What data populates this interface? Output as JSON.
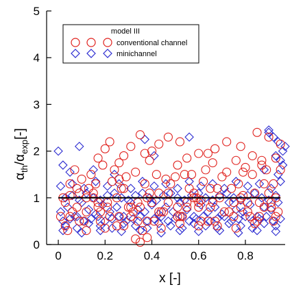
{
  "chart_data": {
    "type": "scatter",
    "xlabel": "x [-]",
    "ylabel_main": "α",
    "ylabel_sub1": "th",
    "ylabel_mid": "/α",
    "ylabel_sub2": "exp",
    "ylabel_tail": "[-]",
    "xlim": [
      -0.05,
      0.97
    ],
    "ylim": [
      0,
      5
    ],
    "x_ticks": [
      0,
      0.2,
      0.4,
      0.6,
      0.8
    ],
    "x_tick_labels": [
      "0",
      "0.2",
      "0.4",
      "0.6",
      "0.8"
    ],
    "y_ticks": [
      0,
      1,
      2,
      3,
      4,
      5
    ],
    "y_tick_labels": [
      "0",
      "1",
      "2",
      "3",
      "4",
      "5"
    ],
    "grid": false,
    "reference_line": {
      "x": [
        0,
        0.95
      ],
      "y": [
        1,
        1
      ],
      "color": "#000000"
    },
    "legend": {
      "title": "model III",
      "placement": "top-left",
      "entries": [
        "conventional channel",
        "minichannel"
      ]
    },
    "series": [
      {
        "name": "conventional channel",
        "marker": "circle",
        "color": "#e0201c",
        "sampled": true,
        "x": [
          0.01,
          0.03,
          0.05,
          0.08,
          0.11,
          0.15,
          0.18,
          0.21,
          0.25,
          0.28,
          0.31,
          0.35,
          0.38,
          0.41,
          0.45,
          0.48,
          0.51,
          0.55,
          0.58,
          0.61,
          0.65,
          0.68,
          0.71,
          0.75,
          0.78,
          0.81,
          0.85,
          0.88,
          0.91,
          0.94,
          0.02,
          0.06,
          0.09,
          0.13,
          0.17,
          0.22,
          0.26,
          0.3,
          0.34,
          0.39,
          0.43,
          0.47,
          0.52,
          0.56,
          0.6,
          0.64,
          0.69,
          0.73,
          0.77,
          0.82,
          0.86,
          0.9,
          0.93,
          0.04,
          0.12,
          0.2,
          0.28,
          0.36,
          0.44,
          0.52,
          0.6,
          0.68,
          0.76,
          0.84,
          0.92,
          0.07,
          0.14,
          0.19,
          0.24,
          0.33,
          0.42,
          0.5,
          0.57,
          0.63,
          0.72,
          0.8,
          0.87,
          0.95,
          0.1,
          0.16,
          0.23,
          0.29,
          0.37,
          0.46,
          0.54,
          0.62,
          0.7,
          0.79,
          0.83,
          0.89,
          0.03,
          0.09,
          0.15,
          0.21,
          0.27,
          0.32,
          0.4,
          0.47,
          0.55,
          0.59,
          0.66,
          0.74,
          0.81,
          0.88,
          0.93,
          0.05,
          0.12,
          0.18,
          0.26,
          0.31,
          0.38,
          0.44,
          0.53,
          0.6,
          0.67,
          0.73,
          0.78,
          0.86,
          0.91,
          0.08,
          0.17,
          0.25,
          0.34,
          0.43,
          0.51,
          0.58,
          0.65,
          0.75,
          0.84,
          0.92,
          0.2,
          0.22,
          0.31,
          0.35,
          0.4,
          0.43,
          0.47,
          0.52,
          0.6,
          0.67,
          0.72,
          0.78,
          0.85,
          0.9,
          0.95,
          0.17,
          0.28,
          0.37,
          0.55,
          0.64,
          0.76,
          0.83,
          0.93,
          0.26,
          0.39,
          0.51,
          0.66,
          0.87,
          0.33,
          0.35,
          0.38,
          0.05,
          0.12,
          0.61,
          0.79
        ],
        "y": [
          0.6,
          0.4,
          1.3,
          0.8,
          0.5,
          1.1,
          0.7,
          0.9,
          0.4,
          1.2,
          0.6,
          0.8,
          1.0,
          0.5,
          0.7,
          1.3,
          0.6,
          0.9,
          1.1,
          0.5,
          0.8,
          1.2,
          0.7,
          0.6,
          1.0,
          0.9,
          0.5,
          1.3,
          0.8,
          0.7,
          1.0,
          0.7,
          0.5,
          1.2,
          0.9,
          0.6,
          1.4,
          0.8,
          0.5,
          1.1,
          0.7,
          0.9,
          0.6,
          1.2,
          0.8,
          0.5,
          1.0,
          0.7,
          1.3,
          0.6,
          0.9,
          1.1,
          0.6,
          0.3,
          0.3,
          0.35,
          0.4,
          0.3,
          0.35,
          0.45,
          0.4,
          0.4,
          0.35,
          0.45,
          0.5,
          1.6,
          1.5,
          1.7,
          1.6,
          1.55,
          1.5,
          1.45,
          1.5,
          1.6,
          1.55,
          1.65,
          1.7,
          1.6,
          1.4,
          1.3,
          1.35,
          1.45,
          1.3,
          1.4,
          1.5,
          1.35,
          1.45,
          1.55,
          1.5,
          1.6,
          0.9,
          1.1,
          1.0,
          0.8,
          1.2,
          0.7,
          0.9,
          1.1,
          0.8,
          1.0,
          0.9,
          1.2,
          0.7,
          0.8,
          1.0,
          0.6,
          0.7,
          0.5,
          0.6,
          0.8,
          0.5,
          0.7,
          0.6,
          0.9,
          0.5,
          0.7,
          0.8,
          0.6,
          0.9,
          1.2,
          0.8,
          1.0,
          0.9,
          1.1,
          0.8,
          1.0,
          1.2,
          0.9,
          1.1,
          1.3,
          2.05,
          2.2,
          2.1,
          2.35,
          2.0,
          2.15,
          2.3,
          2.2,
          1.95,
          2.05,
          2.2,
          2.1,
          2.4,
          2.3,
          2.15,
          1.85,
          1.9,
          1.95,
          1.85,
          1.95,
          1.8,
          1.9,
          1.85,
          1.75,
          1.8,
          1.7,
          1.75,
          1.8,
          0.12,
          0.05,
          0.15,
          1.05,
          1.0,
          0.95,
          1.05
        ]
      },
      {
        "name": "minichannel",
        "marker": "diamond",
        "color": "#2a2ad0",
        "sampled": true,
        "x": [
          0.01,
          0.04,
          0.07,
          0.1,
          0.13,
          0.16,
          0.19,
          0.22,
          0.25,
          0.28,
          0.31,
          0.34,
          0.37,
          0.4,
          0.43,
          0.46,
          0.49,
          0.52,
          0.55,
          0.58,
          0.61,
          0.64,
          0.67,
          0.7,
          0.73,
          0.76,
          0.79,
          0.82,
          0.85,
          0.88,
          0.91,
          0.94,
          0.02,
          0.05,
          0.08,
          0.11,
          0.14,
          0.17,
          0.2,
          0.23,
          0.26,
          0.29,
          0.32,
          0.35,
          0.38,
          0.41,
          0.44,
          0.47,
          0.5,
          0.53,
          0.56,
          0.59,
          0.62,
          0.65,
          0.68,
          0.71,
          0.74,
          0.77,
          0.8,
          0.83,
          0.86,
          0.89,
          0.92,
          0.95,
          0.03,
          0.06,
          0.09,
          0.12,
          0.15,
          0.18,
          0.21,
          0.24,
          0.27,
          0.3,
          0.33,
          0.36,
          0.39,
          0.42,
          0.45,
          0.48,
          0.51,
          0.54,
          0.57,
          0.6,
          0.63,
          0.66,
          0.69,
          0.72,
          0.75,
          0.78,
          0.81,
          0.84,
          0.87,
          0.9,
          0.93,
          0.01,
          0.06,
          0.11,
          0.16,
          0.21,
          0.26,
          0.31,
          0.36,
          0.41,
          0.46,
          0.51,
          0.56,
          0.61,
          0.66,
          0.71,
          0.76,
          0.81,
          0.86,
          0.91,
          0.95,
          0.03,
          0.08,
          0.13,
          0.18,
          0.23,
          0.28,
          0.33,
          0.38,
          0.43,
          0.48,
          0.53,
          0.58,
          0.63,
          0.68,
          0.73,
          0.78,
          0.83,
          0.88,
          0.93,
          0.02,
          0.1,
          0.18,
          0.27,
          0.35,
          0.44,
          0.52,
          0.6,
          0.69,
          0.77,
          0.85,
          0.93,
          0.0,
          0.02,
          0.05,
          0.09,
          0.15,
          0.24,
          0.37,
          0.41,
          0.56,
          0.9,
          0.92,
          0.94,
          0.96,
          0.95,
          0.93,
          0.97,
          0.9,
          0.88,
          0.94,
          0.96
        ],
        "y": [
          0.7,
          0.8,
          0.6,
          0.9,
          0.75,
          0.65,
          0.85,
          0.7,
          0.8,
          0.6,
          0.9,
          0.75,
          0.7,
          0.85,
          0.65,
          0.8,
          0.7,
          0.9,
          0.75,
          0.6,
          0.85,
          0.7,
          0.8,
          0.65,
          0.9,
          0.75,
          0.7,
          0.85,
          0.6,
          0.8,
          0.75,
          0.9,
          0.5,
          0.55,
          0.6,
          0.5,
          0.55,
          0.6,
          0.5,
          0.55,
          0.6,
          0.5,
          0.55,
          0.6,
          0.5,
          0.55,
          0.6,
          0.5,
          0.55,
          0.6,
          0.5,
          0.55,
          0.6,
          0.5,
          0.55,
          0.6,
          0.5,
          0.55,
          0.6,
          0.5,
          0.55,
          0.6,
          0.5,
          0.55,
          1.0,
          1.05,
          0.95,
          1.1,
          1.0,
          0.95,
          1.05,
          1.1,
          1.0,
          0.95,
          1.05,
          1.1,
          1.0,
          0.95,
          1.05,
          1.1,
          1.0,
          0.95,
          1.05,
          1.1,
          1.0,
          0.95,
          1.05,
          1.1,
          1.0,
          0.95,
          1.05,
          1.1,
          1.0,
          0.95,
          1.05,
          1.25,
          1.3,
          1.2,
          1.35,
          1.25,
          1.3,
          1.2,
          1.35,
          1.25,
          1.3,
          1.2,
          1.35,
          1.25,
          1.3,
          1.2,
          1.35,
          1.25,
          1.3,
          1.2,
          1.35,
          0.4,
          0.35,
          0.45,
          0.4,
          0.35,
          0.45,
          0.4,
          0.35,
          0.45,
          0.4,
          0.35,
          0.45,
          0.4,
          0.35,
          0.45,
          0.4,
          0.35,
          0.45,
          0.4,
          0.3,
          0.25,
          0.3,
          0.28,
          0.3,
          0.25,
          0.3,
          0.28,
          0.3,
          0.25,
          0.3,
          0.28,
          2.0,
          1.7,
          1.55,
          2.1,
          1.6,
          1.5,
          2.25,
          1.9,
          2.3,
          2.45,
          2.3,
          2.2,
          2.0,
          1.8,
          1.9,
          2.1,
          2.4,
          1.6,
          1.5,
          1.7
        ]
      }
    ]
  }
}
